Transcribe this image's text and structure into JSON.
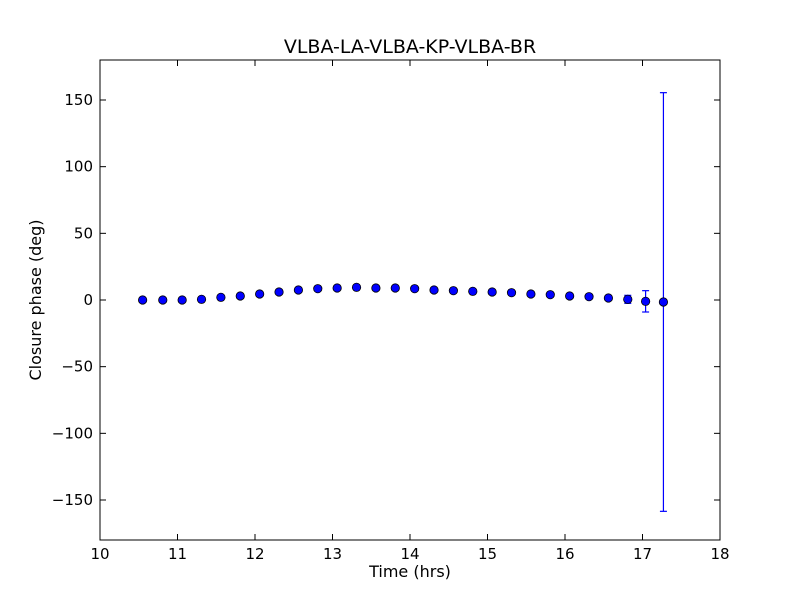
{
  "chart_data": {
    "type": "scatter",
    "title": "VLBA-LA-VLBA-KP-VLBA-BR",
    "xlabel": "Time (hrs)",
    "ylabel": "Closure phase (deg)",
    "xlim": [
      10,
      18
    ],
    "ylim": [
      -180,
      180
    ],
    "xticks": [
      10,
      11,
      12,
      13,
      14,
      15,
      16,
      17,
      18
    ],
    "xtick_labels": [
      "10",
      "11",
      "12",
      "13",
      "14",
      "15",
      "16",
      "17",
      "18"
    ],
    "yticks": [
      150,
      100,
      50,
      0,
      -50,
      -100,
      -150
    ],
    "ytick_labels": [
      "150",
      "100",
      "50",
      "0",
      "−50",
      "−100",
      "−150"
    ],
    "grid": false,
    "legend": "none",
    "colors": {
      "marker": "#0000ff",
      "errorbar": "#0000ff",
      "axes": "#000000"
    },
    "series": [
      {
        "x": [
          10.55,
          10.81,
          11.06,
          11.31,
          11.56,
          11.81,
          12.06,
          12.31,
          12.56,
          12.81,
          13.06,
          13.31,
          13.56,
          13.81,
          14.06,
          14.31,
          14.56,
          14.81,
          15.06,
          15.31,
          15.56,
          15.81,
          16.06,
          16.31,
          16.56,
          16.81,
          17.04,
          17.27
        ],
        "y": [
          0,
          0,
          0,
          0.5,
          2,
          3,
          4.5,
          6,
          7.5,
          8.5,
          9,
          9.5,
          9,
          9,
          8.5,
          7.5,
          7,
          6.5,
          6,
          5.5,
          4.5,
          4,
          3,
          2.5,
          1.5,
          0.5,
          -1,
          -1.5
        ],
        "yerr": [
          1,
          1,
          1,
          1,
          1,
          1,
          1,
          1,
          1,
          1,
          1,
          1,
          1,
          1,
          1,
          1,
          1,
          1,
          1,
          1,
          1,
          1,
          1,
          1,
          1,
          3,
          8,
          157
        ]
      }
    ]
  }
}
